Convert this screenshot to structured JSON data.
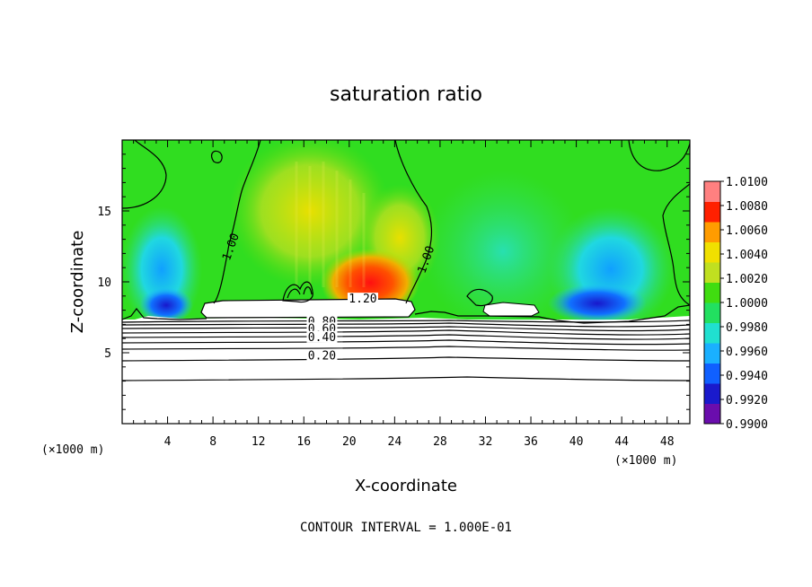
{
  "chart_data": {
    "type": "heatmap",
    "title": "saturation ratio",
    "xlabel": "X-coordinate",
    "ylabel": "Z-coordinate",
    "x_unit": "(×1000 m)",
    "z_unit": "(×1000 m)",
    "xlim": [
      0,
      50
    ],
    "ylim": [
      0,
      20
    ],
    "x_ticks": [
      "4",
      "8",
      "12",
      "16",
      "20",
      "24",
      "28",
      "32",
      "36",
      "40",
      "44",
      "48"
    ],
    "y_ticks": [
      "5",
      "10",
      "15"
    ],
    "colorbar": {
      "range": [
        0.99,
        1.01
      ],
      "ticks": [
        "1.0100",
        "1.0080",
        "1.0060",
        "1.0040",
        "1.0020",
        "1.0000",
        "0.9980",
        "0.9960",
        "0.9940",
        "0.9920",
        "0.9900"
      ],
      "colors": [
        "#6a0dad",
        "#1a1acc",
        "#1060ff",
        "#1ab0ff",
        "#20e0d0",
        "#22e060",
        "#40dd10",
        "#c0e020",
        "#f0e000",
        "#ff9c00",
        "#ff2000",
        "#ff8080"
      ]
    },
    "contour_labels": [
      {
        "text": "1.00",
        "x": 9.8,
        "z": 12.4
      },
      {
        "text": "1.00",
        "x": 27.0,
        "z": 11.5
      },
      {
        "text": "1.20",
        "x": 21.2,
        "z": 8.6
      },
      {
        "text": "0.80",
        "x": 17.6,
        "z": 7.0
      },
      {
        "text": "0.60",
        "x": 17.6,
        "z": 6.5
      },
      {
        "text": "0.40",
        "x": 17.6,
        "z": 5.9
      },
      {
        "text": "0.20",
        "x": 17.6,
        "z": 4.6
      }
    ],
    "contour_levels_below_cloud": [
      7.5,
      7.3,
      7.1,
      6.8,
      6.5,
      6.1,
      5.6,
      4.7,
      3.1
    ]
  },
  "footer": "CONTOUR INTERVAL = 1.000E-01"
}
